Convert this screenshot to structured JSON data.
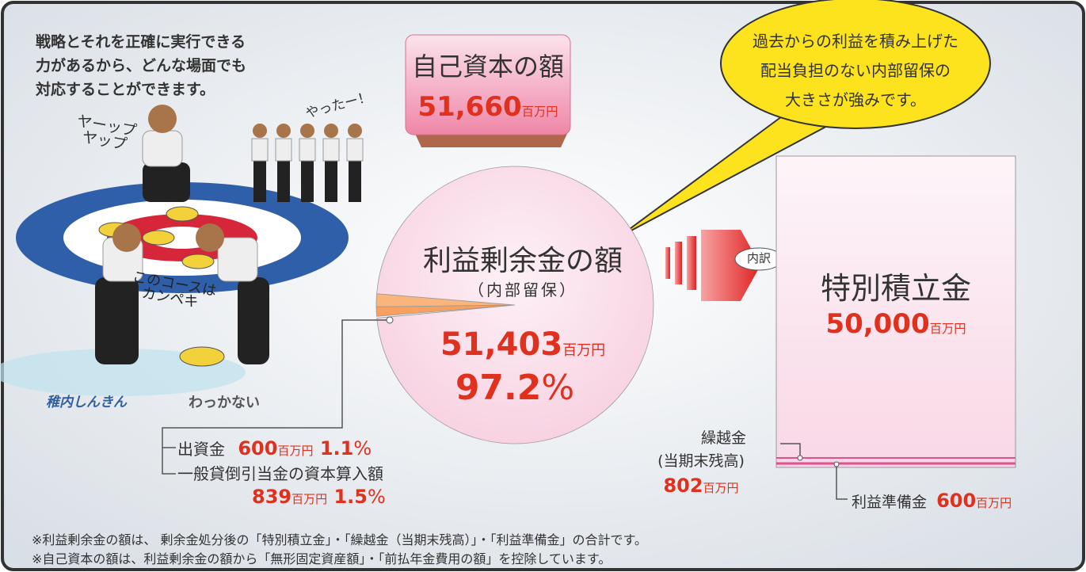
{
  "intro": {
    "lines": [
      "戦略とそれを正確に実行できる",
      "力があるから、どんな場面でも",
      "対応することができます。"
    ]
  },
  "illustration": {
    "shout": [
      "ヤーップ",
      "ヤップ"
    ],
    "cheer": "やったー！",
    "comment": [
      "このコースは",
      "カンペキ"
    ],
    "logos": [
      "稚内しんきん",
      "わっかない"
    ]
  },
  "equity": {
    "title": "自己資本の額",
    "amount": "51,660",
    "unit": "百万円"
  },
  "bubble": {
    "lines": [
      "過去からの利益を積み上げた",
      "配当負担のない内部留保の",
      "大きさが強みです。"
    ]
  },
  "retained": {
    "title": "利益剰余金の額",
    "subtitle": "（内部留保）",
    "amount": "51,403",
    "unit": "百万円",
    "percent": 97.2,
    "percent_unit": "%"
  },
  "capital": {
    "label": "出資金",
    "amount": "600",
    "unit": "百万円",
    "percent": 1.1,
    "percent_unit": "%"
  },
  "allowance": {
    "label": "一般貸倒引当金の資本算入額",
    "amount": "839",
    "unit": "百万円",
    "percent": 1.5,
    "percent_unit": "%"
  },
  "breakdown_label": "内訳",
  "special_reserve": {
    "title": "特別積立金",
    "amount": "50,000",
    "unit": "百万円"
  },
  "carryover": {
    "label": "繰越金",
    "subtitle": "(当期末残高)",
    "amount": "802",
    "unit": "百万円"
  },
  "legal_reserve": {
    "label": "利益準備金",
    "amount": "600",
    "unit": "百万円"
  },
  "notes": [
    "※利益剰余金の額は、 剰余金処分後の「特別積立金」・「繰越金（当期末残高）」・「利益準備金」の合計です。",
    "※自己資本の額は、利益剰余金の額から「無形固定資産額」・「前払年金費用の額」を控除しています。"
  ]
}
